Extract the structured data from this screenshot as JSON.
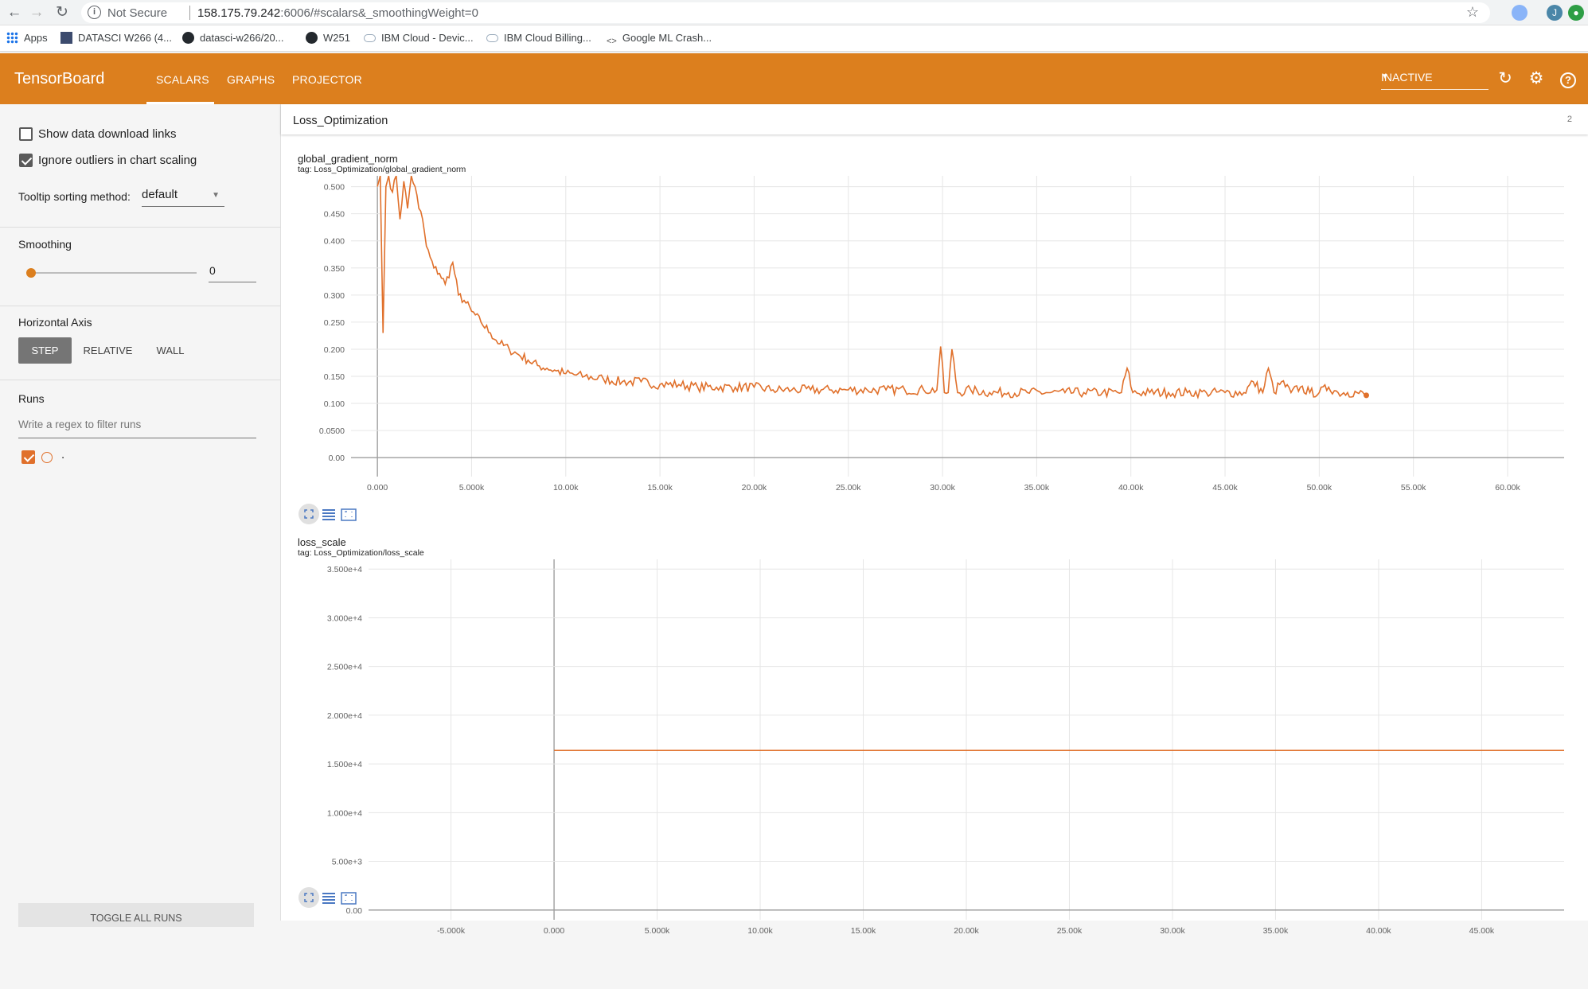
{
  "browser": {
    "security_label": "Not Secure",
    "url_host": "158.175.79.242",
    "url_rest": ":6006/#scalars&_smoothingWeight=0",
    "profile_initial": "J",
    "bookmarks": [
      {
        "label": "Apps",
        "icon": "apps-grid-icon"
      },
      {
        "label": "DATASCI W266 (4...",
        "icon": "page-icon"
      },
      {
        "label": "datasci-w266/20...",
        "icon": "github-icon"
      },
      {
        "label": "W251",
        "icon": "github-icon"
      },
      {
        "label": "IBM Cloud - Devic...",
        "icon": "cloud-icon"
      },
      {
        "label": "IBM Cloud Billing...",
        "icon": "cloud-icon"
      },
      {
        "label": "Google ML Crash...",
        "icon": "code-icon"
      }
    ]
  },
  "toolbar": {
    "brand": "TensorBoard",
    "tabs": [
      {
        "label": "SCALARS",
        "active": true
      },
      {
        "label": "GRAPHS",
        "active": false
      },
      {
        "label": "PROJECTOR",
        "active": false
      }
    ],
    "run_status": "INACTIVE",
    "accent_color": "#dc7f1e"
  },
  "sidebar": {
    "show_download_links": {
      "label": "Show data download links",
      "checked": false
    },
    "ignore_outliers": {
      "label": "Ignore outliers in chart scaling",
      "checked": true
    },
    "tooltip_sorting": {
      "label": "Tooltip sorting method:",
      "value": "default"
    },
    "smoothing": {
      "label": "Smoothing",
      "value": "0",
      "slider_fraction": 0
    },
    "horizontal_axis": {
      "label": "Horizontal Axis",
      "options": [
        "STEP",
        "RELATIVE",
        "WALL"
      ],
      "selected": "STEP"
    },
    "runs": {
      "label": "Runs",
      "filter_placeholder": "Write a regex to filter runs",
      "items": [
        {
          "label": ".",
          "checked": true,
          "color": "#e0702b"
        }
      ]
    },
    "toggle_all_runs": "TOGGLE ALL RUNS"
  },
  "main": {
    "category": {
      "name": "Loss_Optimization",
      "count": "2"
    },
    "charts": [
      {
        "title": "global_gradient_norm",
        "tag": "tag: Loss_Optimization/global_gradient_norm"
      },
      {
        "title": "loss_scale",
        "tag": "tag: Loss_Optimization/loss_scale"
      }
    ]
  },
  "chart_data": [
    {
      "type": "line",
      "title": "global_gradient_norm",
      "xlim": [
        -1400,
        63000
      ],
      "ylim": [
        -0.035,
        0.52
      ],
      "x_ticks": [
        0,
        5000,
        10000,
        15000,
        20000,
        25000,
        30000,
        35000,
        40000,
        45000,
        50000,
        55000,
        60000
      ],
      "x_tick_labels": [
        "0.000",
        "5.000k",
        "10.00k",
        "15.00k",
        "20.00k",
        "25.00k",
        "30.00k",
        "35.00k",
        "40.00k",
        "45.00k",
        "50.00k",
        "55.00k",
        "60.00k"
      ],
      "y_ticks": [
        0,
        0.05,
        0.1,
        0.15,
        0.2,
        0.25,
        0.3,
        0.35,
        0.4,
        0.45,
        0.5
      ],
      "y_tick_labels": [
        "0.00",
        "0.0500",
        "0.100",
        "0.150",
        "0.200",
        "0.250",
        "0.300",
        "0.350",
        "0.400",
        "0.450",
        "0.500"
      ],
      "series": [
        {
          "color": "#e0702b",
          "x": [
            0,
            150,
            300,
            450,
            600,
            800,
            1000,
            1200,
            1400,
            1600,
            1800,
            2000,
            2200,
            2400,
            2600,
            2800,
            3000,
            3300,
            3600,
            4000,
            4300,
            4600,
            5000,
            5500,
            6000,
            6500,
            7000,
            7500,
            8000,
            8500,
            9000,
            9500,
            10000,
            11000,
            12000,
            13000,
            14000,
            15000,
            16000,
            17000,
            18000,
            19000,
            20000,
            21000,
            22000,
            23000,
            24000,
            25000,
            26000,
            27000,
            28000,
            29000,
            29700,
            29900,
            30100,
            30300,
            30500,
            30800,
            31500,
            32500,
            33500,
            34500,
            35500,
            36500,
            37500,
            38500,
            39500,
            39800,
            40100,
            41000,
            42000,
            43000,
            44000,
            45000,
            46000,
            46500,
            47000,
            47300,
            47600,
            48000,
            48500,
            49000,
            49500,
            50000,
            50500,
            51000,
            51500,
            52000,
            52500
          ],
          "y": [
            0.5,
            0.52,
            0.23,
            0.5,
            0.52,
            0.49,
            0.52,
            0.44,
            0.51,
            0.46,
            0.52,
            0.5,
            0.46,
            0.44,
            0.39,
            0.37,
            0.35,
            0.34,
            0.32,
            0.36,
            0.3,
            0.29,
            0.27,
            0.25,
            0.23,
            0.21,
            0.2,
            0.19,
            0.18,
            0.17,
            0.165,
            0.16,
            0.155,
            0.15,
            0.145,
            0.14,
            0.14,
            0.135,
            0.135,
            0.13,
            0.13,
            0.13,
            0.13,
            0.125,
            0.125,
            0.125,
            0.125,
            0.125,
            0.125,
            0.125,
            0.125,
            0.125,
            0.125,
            0.205,
            0.12,
            0.12,
            0.2,
            0.12,
            0.125,
            0.12,
            0.12,
            0.12,
            0.12,
            0.12,
            0.12,
            0.12,
            0.12,
            0.165,
            0.12,
            0.12,
            0.12,
            0.12,
            0.12,
            0.12,
            0.12,
            0.14,
            0.12,
            0.165,
            0.12,
            0.14,
            0.12,
            0.13,
            0.12,
            0.12,
            0.13,
            0.12,
            0.12,
            0.12,
            0.115
          ]
        }
      ]
    },
    {
      "type": "line",
      "title": "loss_scale",
      "xlim": [
        -9000,
        49000
      ],
      "ylim": [
        -1000,
        36000
      ],
      "x_ticks": [
        -5000,
        0,
        5000,
        10000,
        15000,
        20000,
        25000,
        30000,
        35000,
        40000,
        45000
      ],
      "x_tick_labels": [
        "-5.000k",
        "0.000",
        "5.000k",
        "10.00k",
        "15.00k",
        "20.00k",
        "25.00k",
        "30.00k",
        "35.00k",
        "40.00k",
        "45.00k"
      ],
      "y_ticks": [
        0,
        5000,
        10000,
        15000,
        20000,
        25000,
        30000,
        35000
      ],
      "y_tick_labels": [
        "0.00",
        "5.00e+3",
        "1.000e+4",
        "1.500e+4",
        "2.000e+4",
        "2.500e+4",
        "3.000e+4",
        "3.500e+4"
      ],
      "series": [
        {
          "color": "#e0702b",
          "x": [
            0,
            49000
          ],
          "y": [
            16384,
            16384
          ]
        }
      ]
    }
  ]
}
